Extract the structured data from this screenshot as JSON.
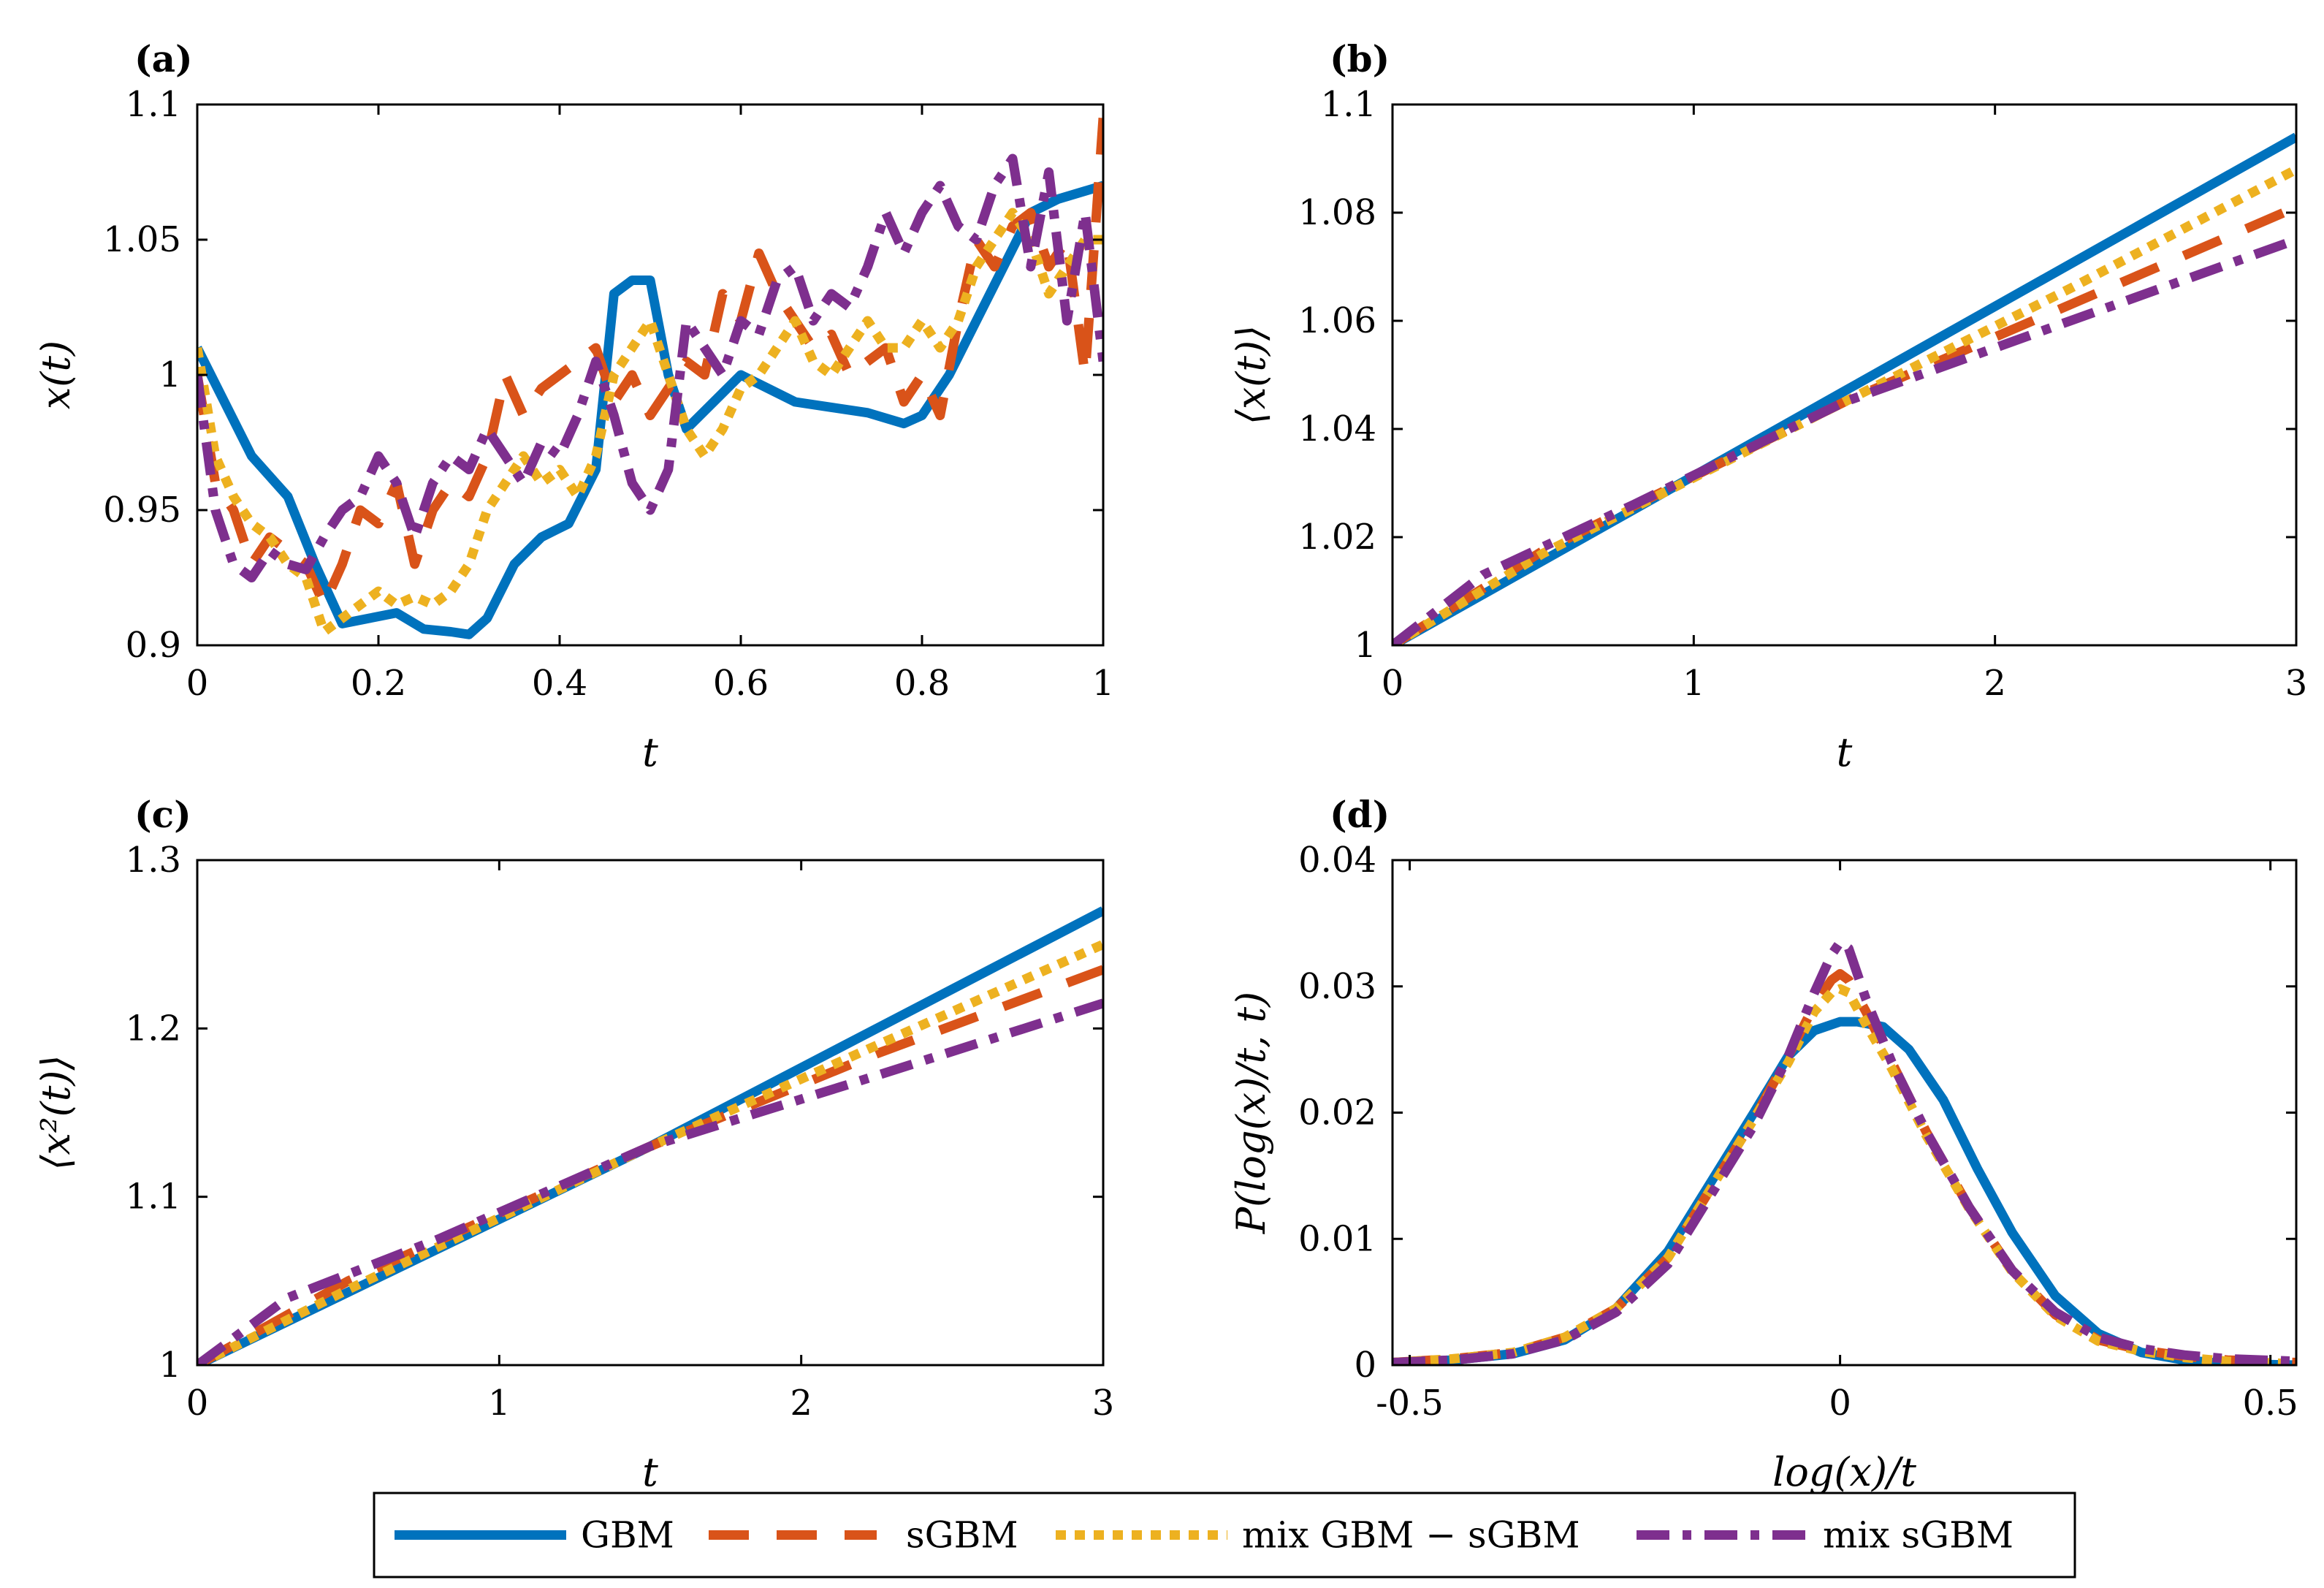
{
  "chart_data": [
    {
      "id": "a",
      "type": "line",
      "panel_label": "(a)",
      "xlabel": "t",
      "ylabel": "x(t)",
      "xlim": [
        0,
        1
      ],
      "ylim": [
        0.9,
        1.1
      ],
      "xticks": [
        0,
        0.2,
        0.4,
        0.6,
        0.8,
        1
      ],
      "xtick_labels": [
        "0",
        "0.2",
        "0.4",
        "0.6",
        "0.8",
        "1"
      ],
      "yticks": [
        0.9,
        0.95,
        1.0,
        1.05,
        1.1
      ],
      "ytick_labels": [
        "0.9",
        "0.95",
        "1",
        "1.05",
        "1.1"
      ],
      "series": [
        {
          "name": "GBM",
          "x": [
            0,
            0.03,
            0.06,
            0.1,
            0.13,
            0.16,
            0.19,
            0.22,
            0.25,
            0.28,
            0.3,
            0.32,
            0.35,
            0.38,
            0.41,
            0.44,
            0.46,
            0.48,
            0.5,
            0.52,
            0.54,
            0.57,
            0.6,
            0.63,
            0.66,
            0.7,
            0.74,
            0.78,
            0.8,
            0.83,
            0.86,
            0.89,
            0.92,
            0.95,
            0.98,
            1.0
          ],
          "y": [
            1.01,
            0.99,
            0.97,
            0.955,
            0.93,
            0.908,
            0.91,
            0.912,
            0.906,
            0.905,
            0.904,
            0.91,
            0.93,
            0.94,
            0.945,
            0.965,
            1.03,
            1.035,
            1.035,
            1.0,
            0.98,
            0.99,
            1.0,
            0.995,
            0.99,
            0.988,
            0.986,
            0.982,
            0.985,
            1.0,
            1.02,
            1.04,
            1.06,
            1.065,
            1.068,
            1.07
          ]
        },
        {
          "name": "sGBM",
          "x": [
            0,
            0.02,
            0.04,
            0.06,
            0.08,
            0.1,
            0.12,
            0.14,
            0.16,
            0.18,
            0.2,
            0.22,
            0.24,
            0.26,
            0.28,
            0.3,
            0.32,
            0.34,
            0.36,
            0.38,
            0.4,
            0.42,
            0.44,
            0.46,
            0.48,
            0.5,
            0.52,
            0.54,
            0.56,
            0.58,
            0.6,
            0.62,
            0.64,
            0.66,
            0.68,
            0.7,
            0.72,
            0.74,
            0.76,
            0.78,
            0.8,
            0.82,
            0.84,
            0.86,
            0.88,
            0.9,
            0.92,
            0.94,
            0.96,
            0.98,
            1.0
          ],
          "y": [
            1.0,
            0.96,
            0.95,
            0.93,
            0.94,
            0.935,
            0.93,
            0.915,
            0.93,
            0.95,
            0.945,
            0.96,
            0.93,
            0.95,
            0.96,
            0.955,
            0.97,
            1.0,
            0.985,
            0.995,
            1.0,
            1.005,
            1.01,
            0.99,
            1.0,
            0.985,
            0.995,
            1.005,
            1.0,
            1.03,
            1.02,
            1.045,
            1.03,
            1.02,
            1.01,
            1.015,
            1.0,
            1.005,
            1.01,
            0.99,
            1.0,
            0.985,
            1.02,
            1.05,
            1.04,
            1.055,
            1.06,
            1.04,
            1.05,
            1.0,
            1.095
          ]
        },
        {
          "name": "mix GBM − sGBM",
          "x": [
            0,
            0.02,
            0.04,
            0.06,
            0.08,
            0.1,
            0.12,
            0.14,
            0.16,
            0.18,
            0.2,
            0.22,
            0.24,
            0.26,
            0.28,
            0.3,
            0.32,
            0.34,
            0.36,
            0.38,
            0.4,
            0.42,
            0.44,
            0.46,
            0.48,
            0.5,
            0.52,
            0.54,
            0.56,
            0.58,
            0.6,
            0.62,
            0.64,
            0.66,
            0.68,
            0.7,
            0.72,
            0.74,
            0.76,
            0.78,
            0.8,
            0.82,
            0.84,
            0.86,
            0.88,
            0.9,
            0.92,
            0.94,
            0.96,
            0.98,
            1.0
          ],
          "y": [
            1.01,
            0.97,
            0.955,
            0.945,
            0.94,
            0.93,
            0.925,
            0.905,
            0.91,
            0.915,
            0.92,
            0.915,
            0.918,
            0.915,
            0.92,
            0.93,
            0.95,
            0.96,
            0.97,
            0.96,
            0.965,
            0.955,
            0.97,
            1.0,
            1.01,
            1.02,
            1.0,
            0.98,
            0.97,
            0.98,
            0.995,
            1.0,
            1.01,
            1.02,
            1.005,
            1.0,
            1.01,
            1.02,
            1.01,
            1.01,
            1.02,
            1.01,
            1.02,
            1.04,
            1.05,
            1.06,
            1.05,
            1.03,
            1.04,
            1.05,
            1.05
          ]
        },
        {
          "name": "mix sGBM",
          "x": [
            0,
            0.02,
            0.04,
            0.06,
            0.08,
            0.1,
            0.12,
            0.14,
            0.16,
            0.18,
            0.2,
            0.22,
            0.24,
            0.26,
            0.28,
            0.3,
            0.32,
            0.34,
            0.36,
            0.38,
            0.4,
            0.42,
            0.44,
            0.46,
            0.48,
            0.5,
            0.52,
            0.54,
            0.56,
            0.58,
            0.6,
            0.62,
            0.64,
            0.66,
            0.68,
            0.7,
            0.72,
            0.74,
            0.76,
            0.78,
            0.8,
            0.82,
            0.84,
            0.86,
            0.88,
            0.9,
            0.92,
            0.94,
            0.96,
            0.98,
            1.0
          ],
          "y": [
            1.0,
            0.95,
            0.93,
            0.925,
            0.935,
            0.93,
            0.928,
            0.94,
            0.95,
            0.955,
            0.97,
            0.96,
            0.94,
            0.96,
            0.97,
            0.965,
            0.98,
            0.97,
            0.96,
            0.975,
            0.97,
            0.985,
            1.005,
            0.985,
            0.96,
            0.95,
            0.965,
            1.02,
            1.01,
            1.0,
            1.02,
            1.015,
            1.035,
            1.04,
            1.02,
            1.03,
            1.025,
            1.04,
            1.06,
            1.045,
            1.06,
            1.07,
            1.055,
            1.05,
            1.07,
            1.08,
            1.04,
            1.075,
            1.02,
            1.06,
            1.005
          ]
        }
      ]
    },
    {
      "id": "b",
      "type": "line",
      "panel_label": "(b)",
      "xlabel": "t",
      "ylabel": "⟨x(t)⟩",
      "xlim": [
        0,
        3
      ],
      "ylim": [
        1.0,
        1.1
      ],
      "xticks": [
        0,
        1,
        2,
        3
      ],
      "xtick_labels": [
        "0",
        "1",
        "2",
        "3"
      ],
      "yticks": [
        1.0,
        1.02,
        1.04,
        1.06,
        1.08,
        1.1
      ],
      "ytick_labels": [
        "1",
        "1.02",
        "1.04",
        "1.06",
        "1.08",
        "1.1"
      ],
      "series": [
        {
          "name": "GBM",
          "x": [
            0,
            1.5,
            3
          ],
          "y": [
            1.0,
            1.047,
            1.094
          ]
        },
        {
          "name": "sGBM",
          "x": [
            0,
            0.5,
            1.5,
            2.25,
            3
          ],
          "y": [
            1.0,
            1.0175,
            1.045,
            1.063,
            1.081
          ]
        },
        {
          "name": "mix GBM − sGBM",
          "x": [
            0,
            0.5,
            1.5,
            2.25,
            3
          ],
          "y": [
            1.0,
            1.017,
            1.045,
            1.066,
            1.088
          ]
        },
        {
          "name": "mix sGBM",
          "x": [
            0,
            0.3,
            0.8,
            1.5,
            2.25,
            3
          ],
          "y": [
            1.0,
            1.013,
            1.026,
            1.045,
            1.06,
            1.075
          ]
        }
      ]
    },
    {
      "id": "c",
      "type": "line",
      "panel_label": "(c)",
      "xlabel": "t",
      "ylabel": "⟨x²(t)⟩",
      "xlim": [
        0,
        3
      ],
      "ylim": [
        1.0,
        1.3
      ],
      "xticks": [
        0,
        1,
        2,
        3
      ],
      "xtick_labels": [
        "0",
        "1",
        "2",
        "3"
      ],
      "yticks": [
        1.0,
        1.1,
        1.2,
        1.3
      ],
      "ytick_labels": [
        "1",
        "1.1",
        "1.2",
        "1.3"
      ],
      "series": [
        {
          "name": "GBM",
          "x": [
            0,
            1.5,
            3
          ],
          "y": [
            1.0,
            1.13,
            1.27
          ]
        },
        {
          "name": "sGBM",
          "x": [
            0,
            0.5,
            1.5,
            2.25,
            3
          ],
          "y": [
            1.0,
            1.05,
            1.13,
            1.185,
            1.235
          ]
        },
        {
          "name": "mix GBM − sGBM",
          "x": [
            0,
            0.5,
            1.5,
            2.25,
            3
          ],
          "y": [
            1.0,
            1.045,
            1.13,
            1.19,
            1.25
          ]
        },
        {
          "name": "mix sGBM",
          "x": [
            0,
            0.3,
            0.8,
            1.5,
            2.25,
            3
          ],
          "y": [
            1.0,
            1.04,
            1.075,
            1.13,
            1.172,
            1.215
          ]
        }
      ]
    },
    {
      "id": "d",
      "type": "line",
      "panel_label": "(d)",
      "xlabel": "log(x)/t",
      "ylabel": "P(log(x)/t, t)",
      "xlim": [
        -0.52,
        0.53
      ],
      "ylim": [
        0,
        0.04
      ],
      "xticks": [
        -0.5,
        0,
        0.5
      ],
      "xtick_labels": [
        "-0.5",
        "0",
        "0.5"
      ],
      "yticks": [
        0,
        0.01,
        0.02,
        0.03,
        0.04
      ],
      "ytick_labels": [
        "0",
        "0.01",
        "0.02",
        "0.03",
        "0.04"
      ],
      "series": [
        {
          "name": "GBM",
          "x": [
            -0.52,
            -0.45,
            -0.38,
            -0.32,
            -0.26,
            -0.2,
            -0.15,
            -0.1,
            -0.06,
            -0.03,
            0.0,
            0.02,
            0.05,
            0.08,
            0.12,
            0.16,
            0.2,
            0.25,
            0.3,
            0.35,
            0.4,
            0.45,
            0.53
          ],
          "y": [
            0.0002,
            0.0004,
            0.0009,
            0.002,
            0.0045,
            0.009,
            0.0145,
            0.02,
            0.0245,
            0.0265,
            0.0272,
            0.0272,
            0.0268,
            0.025,
            0.021,
            0.0155,
            0.0105,
            0.0055,
            0.0025,
            0.001,
            0.0004,
            0.0001,
            0.0
          ]
        },
        {
          "name": "sGBM",
          "x": [
            -0.52,
            -0.45,
            -0.38,
            -0.32,
            -0.26,
            -0.2,
            -0.15,
            -0.1,
            -0.06,
            -0.03,
            -0.01,
            0.0,
            0.01,
            0.03,
            0.06,
            0.1,
            0.15,
            0.2,
            0.25,
            0.3,
            0.35,
            0.4,
            0.45,
            0.53
          ],
          "y": [
            0.0002,
            0.0005,
            0.001,
            0.0022,
            0.0045,
            0.0085,
            0.014,
            0.0195,
            0.0245,
            0.0285,
            0.0305,
            0.031,
            0.0305,
            0.028,
            0.024,
            0.0185,
            0.0125,
            0.0075,
            0.004,
            0.002,
            0.0012,
            0.0007,
            0.0004,
            0.0002
          ]
        },
        {
          "name": "mix GBM − sGBM",
          "x": [
            -0.52,
            -0.45,
            -0.38,
            -0.32,
            -0.26,
            -0.2,
            -0.15,
            -0.1,
            -0.06,
            -0.03,
            -0.01,
            0.0,
            0.01,
            0.03,
            0.06,
            0.1,
            0.15,
            0.2,
            0.25,
            0.3,
            0.35,
            0.4,
            0.45,
            0.53
          ],
          "y": [
            0.0002,
            0.0005,
            0.001,
            0.0022,
            0.0045,
            0.0085,
            0.014,
            0.0195,
            0.024,
            0.028,
            0.0295,
            0.0298,
            0.0295,
            0.027,
            0.0235,
            0.0182,
            0.0124,
            0.0074,
            0.0039,
            0.0019,
            0.0011,
            0.0006,
            0.0003,
            0.0001
          ]
        },
        {
          "name": "mix sGBM",
          "x": [
            -0.52,
            -0.45,
            -0.38,
            -0.32,
            -0.26,
            -0.2,
            -0.15,
            -0.1,
            -0.06,
            -0.03,
            -0.01,
            0.0,
            0.01,
            0.03,
            0.06,
            0.1,
            0.15,
            0.2,
            0.25,
            0.3,
            0.35,
            0.4,
            0.45,
            0.53
          ],
          "y": [
            0.0002,
            0.0004,
            0.0009,
            0.002,
            0.0042,
            0.008,
            0.0135,
            0.019,
            0.0245,
            0.0295,
            0.0325,
            0.0335,
            0.033,
            0.029,
            0.024,
            0.0185,
            0.0125,
            0.0075,
            0.0042,
            0.0022,
            0.0013,
            0.0008,
            0.0005,
            0.0003
          ]
        }
      ]
    }
  ],
  "legend": {
    "position": "bottom-center",
    "entries": [
      {
        "label": "GBM",
        "color": "#0072BD",
        "style": "solid"
      },
      {
        "label": "sGBM",
        "color": "#D95319",
        "style": "dashed"
      },
      {
        "label": "mix GBM − sGBM",
        "color": "#EDB120",
        "style": "dotted"
      },
      {
        "label": "mix sGBM",
        "color": "#7E2F8E",
        "style": "dashdot"
      }
    ]
  }
}
